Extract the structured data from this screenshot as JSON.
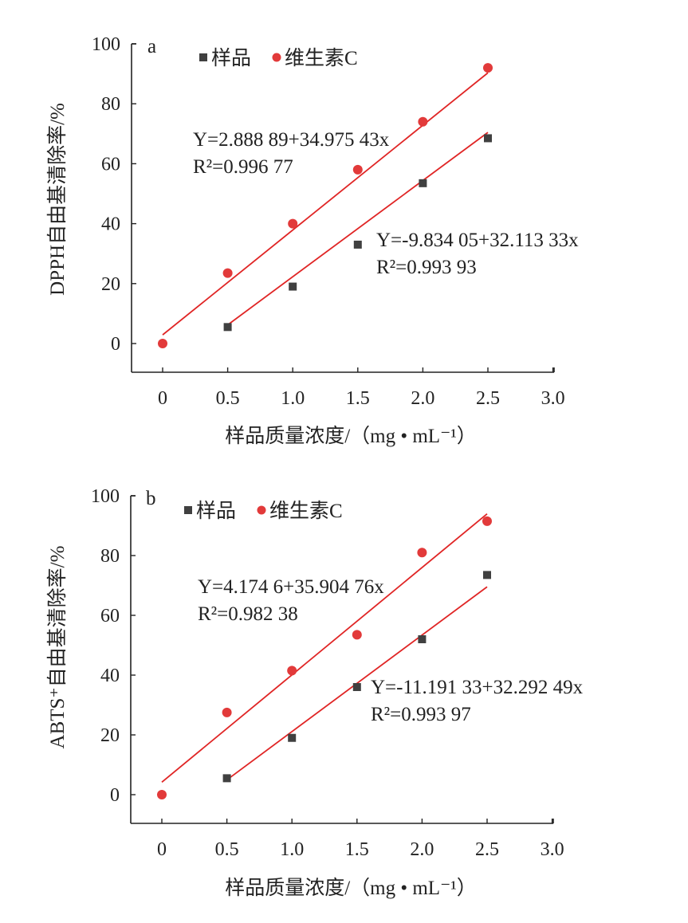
{
  "chart_data": [
    {
      "type": "scatter",
      "panel": "a",
      "xlabel": "样品质量浓度/（mg • mL⁻¹）",
      "ylabel": "DPPH自由基清除率/%",
      "xlim": [
        -0.24,
        3.0
      ],
      "ylim": [
        -10,
        100
      ],
      "xticks": [
        "0",
        "0.5",
        "1.0",
        "1.5",
        "2.0",
        "2.5",
        "3.0"
      ],
      "xtick_values": [
        0,
        0.5,
        1.0,
        1.5,
        2.0,
        2.5,
        3.0
      ],
      "yticks": [
        "0",
        "20",
        "40",
        "60",
        "80",
        "100"
      ],
      "ytick_values": [
        0,
        20,
        40,
        60,
        80,
        100
      ],
      "legend": {
        "placement": "top-left",
        "entries": [
          "样品",
          "维生素C"
        ]
      },
      "series": [
        {
          "name": "样品",
          "color": "#404040",
          "marker": "square",
          "x": [
            0.5,
            1.0,
            1.5,
            2.0,
            2.5
          ],
          "y": [
            5.5,
            19,
            33,
            53.5,
            68.5
          ],
          "fit": {
            "intercept": -9.83405,
            "slope": 32.11333,
            "x_range": [
              0.5,
              2.5
            ],
            "equation": "Y=-9.834 05+32.113 33x",
            "r2": "R²=0.993 93"
          }
        },
        {
          "name": "维生素C",
          "color": "#e23a3a",
          "marker": "circle",
          "x": [
            0,
            0.5,
            1.0,
            1.5,
            2.0,
            2.5
          ],
          "y": [
            0,
            23.5,
            40,
            58,
            74,
            92
          ],
          "fit": {
            "intercept": 2.88889,
            "slope": 34.97543,
            "x_range": [
              0,
              2.5
            ],
            "equation": "Y=2.888 89+34.975 43x",
            "r2": "R²=0.996 77"
          }
        }
      ]
    },
    {
      "type": "scatter",
      "panel": "b",
      "xlabel": "样品质量浓度/（mg • mL⁻¹）",
      "ylabel": "ABTS⁺自由基清除率/%",
      "xlim": [
        -0.24,
        3.0
      ],
      "ylim": [
        -10,
        100
      ],
      "xticks": [
        "0",
        "0.5",
        "1.0",
        "1.5",
        "2.0",
        "2.5",
        "3.0"
      ],
      "xtick_values": [
        0,
        0.5,
        1.0,
        1.5,
        2.0,
        2.5,
        3.0
      ],
      "yticks": [
        "0",
        "20",
        "40",
        "60",
        "80",
        "100"
      ],
      "ytick_values": [
        0,
        20,
        40,
        60,
        80,
        100
      ],
      "legend": {
        "placement": "top-left",
        "entries": [
          "样品",
          "维生素C"
        ]
      },
      "series": [
        {
          "name": "样品",
          "color": "#404040",
          "marker": "square",
          "x": [
            0.5,
            1.0,
            1.5,
            2.0,
            2.5
          ],
          "y": [
            5.5,
            19,
            36,
            52,
            73.5
          ],
          "fit": {
            "intercept": -11.19133,
            "slope": 32.29249,
            "x_range": [
              0.5,
              2.5
            ],
            "equation": "Y=-11.191 33+32.292 49x",
            "r2": "R²=0.993 97"
          }
        },
        {
          "name": "维生素C",
          "color": "#e23a3a",
          "marker": "circle",
          "x": [
            0,
            0.5,
            1.0,
            1.5,
            2.0,
            2.5
          ],
          "y": [
            0,
            27.5,
            41.5,
            53.5,
            81,
            91.5
          ],
          "fit": {
            "intercept": 4.1746,
            "slope": 35.90476,
            "x_range": [
              0,
              2.5
            ],
            "equation": "Y=4.174 6+35.904 76x",
            "r2": "R²=0.982 38"
          }
        }
      ]
    }
  ],
  "fit_line_color": "#e02525"
}
